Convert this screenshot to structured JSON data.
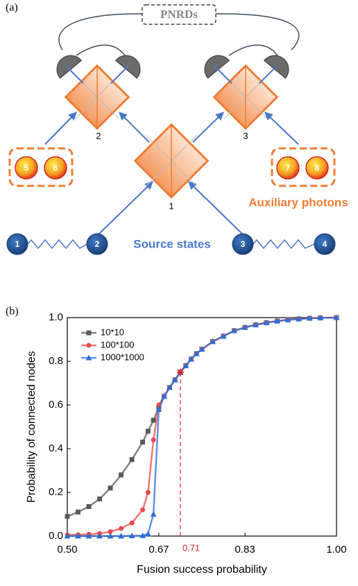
{
  "diagram": {
    "panel_label": "(a)",
    "detector_label": "PNRDs",
    "beam_splitters": [
      "1",
      "2",
      "3"
    ],
    "photons": [
      "1",
      "2",
      "3",
      "4",
      "5",
      "6",
      "7",
      "8"
    ],
    "auxiliary_label": "Auxiliary photons",
    "source_label": "Source states"
  },
  "chart_data": {
    "type": "line",
    "panel_label": "(b)",
    "xlabel": "Fusion success probability",
    "ylabel": "Probability of connected nodes",
    "x": [
      0.5,
      0.52,
      0.54,
      0.56,
      0.58,
      0.6,
      0.62,
      0.64,
      0.65,
      0.66,
      0.67,
      0.68,
      0.69,
      0.7,
      0.71,
      0.72,
      0.73,
      0.74,
      0.75,
      0.77,
      0.79,
      0.81,
      0.83,
      0.85,
      0.87,
      0.89,
      0.91,
      0.93,
      0.95,
      0.97,
      1.0
    ],
    "series": [
      {
        "name": "10*10",
        "color": "#5a5a5a",
        "marker": "square",
        "values": [
          0.09,
          0.11,
          0.135,
          0.17,
          0.22,
          0.28,
          0.35,
          0.43,
          0.48,
          0.53,
          0.59,
          0.64,
          0.68,
          0.715,
          0.75,
          0.78,
          0.81,
          0.835,
          0.855,
          0.89,
          0.915,
          0.94,
          0.955,
          0.967,
          0.977,
          0.984,
          0.99,
          0.994,
          0.997,
          0.999,
          1.0
        ]
      },
      {
        "name": "100*100",
        "color": "#e84a4a",
        "marker": "circle",
        "values": [
          0.005,
          0.006,
          0.008,
          0.012,
          0.02,
          0.035,
          0.06,
          0.12,
          0.2,
          0.44,
          0.6,
          0.64,
          0.68,
          0.715,
          0.75,
          0.78,
          0.81,
          0.835,
          0.855,
          0.89,
          0.915,
          0.94,
          0.955,
          0.967,
          0.977,
          0.984,
          0.99,
          0.994,
          0.997,
          0.999,
          1.0
        ]
      },
      {
        "name": "1000*1000",
        "color": "#2f6fd6",
        "marker": "triangle",
        "values": [
          0,
          0,
          0,
          0,
          0,
          0,
          0.001,
          0.002,
          0.01,
          0.1,
          0.58,
          0.64,
          0.68,
          0.715,
          0.75,
          0.78,
          0.81,
          0.835,
          0.855,
          0.89,
          0.915,
          0.94,
          0.955,
          0.967,
          0.977,
          0.984,
          0.99,
          0.994,
          0.997,
          0.999,
          1.0
        ]
      }
    ],
    "xlim": [
      0.5,
      1.0
    ],
    "ylim": [
      0,
      1.0
    ],
    "xticks": [
      {
        "value": 0.5,
        "label": "0.50"
      },
      0.67,
      0.83,
      {
        "value": 1.0,
        "label": "1.00"
      }
    ],
    "yticks": [
      {
        "value": 0,
        "label": "0.0"
      },
      0.2,
      0.4,
      0.6,
      0.8,
      {
        "value": 1.0,
        "label": "1.0"
      }
    ],
    "threshold": {
      "x": 0.71,
      "y": 0.75,
      "color": "#d62728"
    },
    "legend": "upper-left",
    "grid": false
  }
}
